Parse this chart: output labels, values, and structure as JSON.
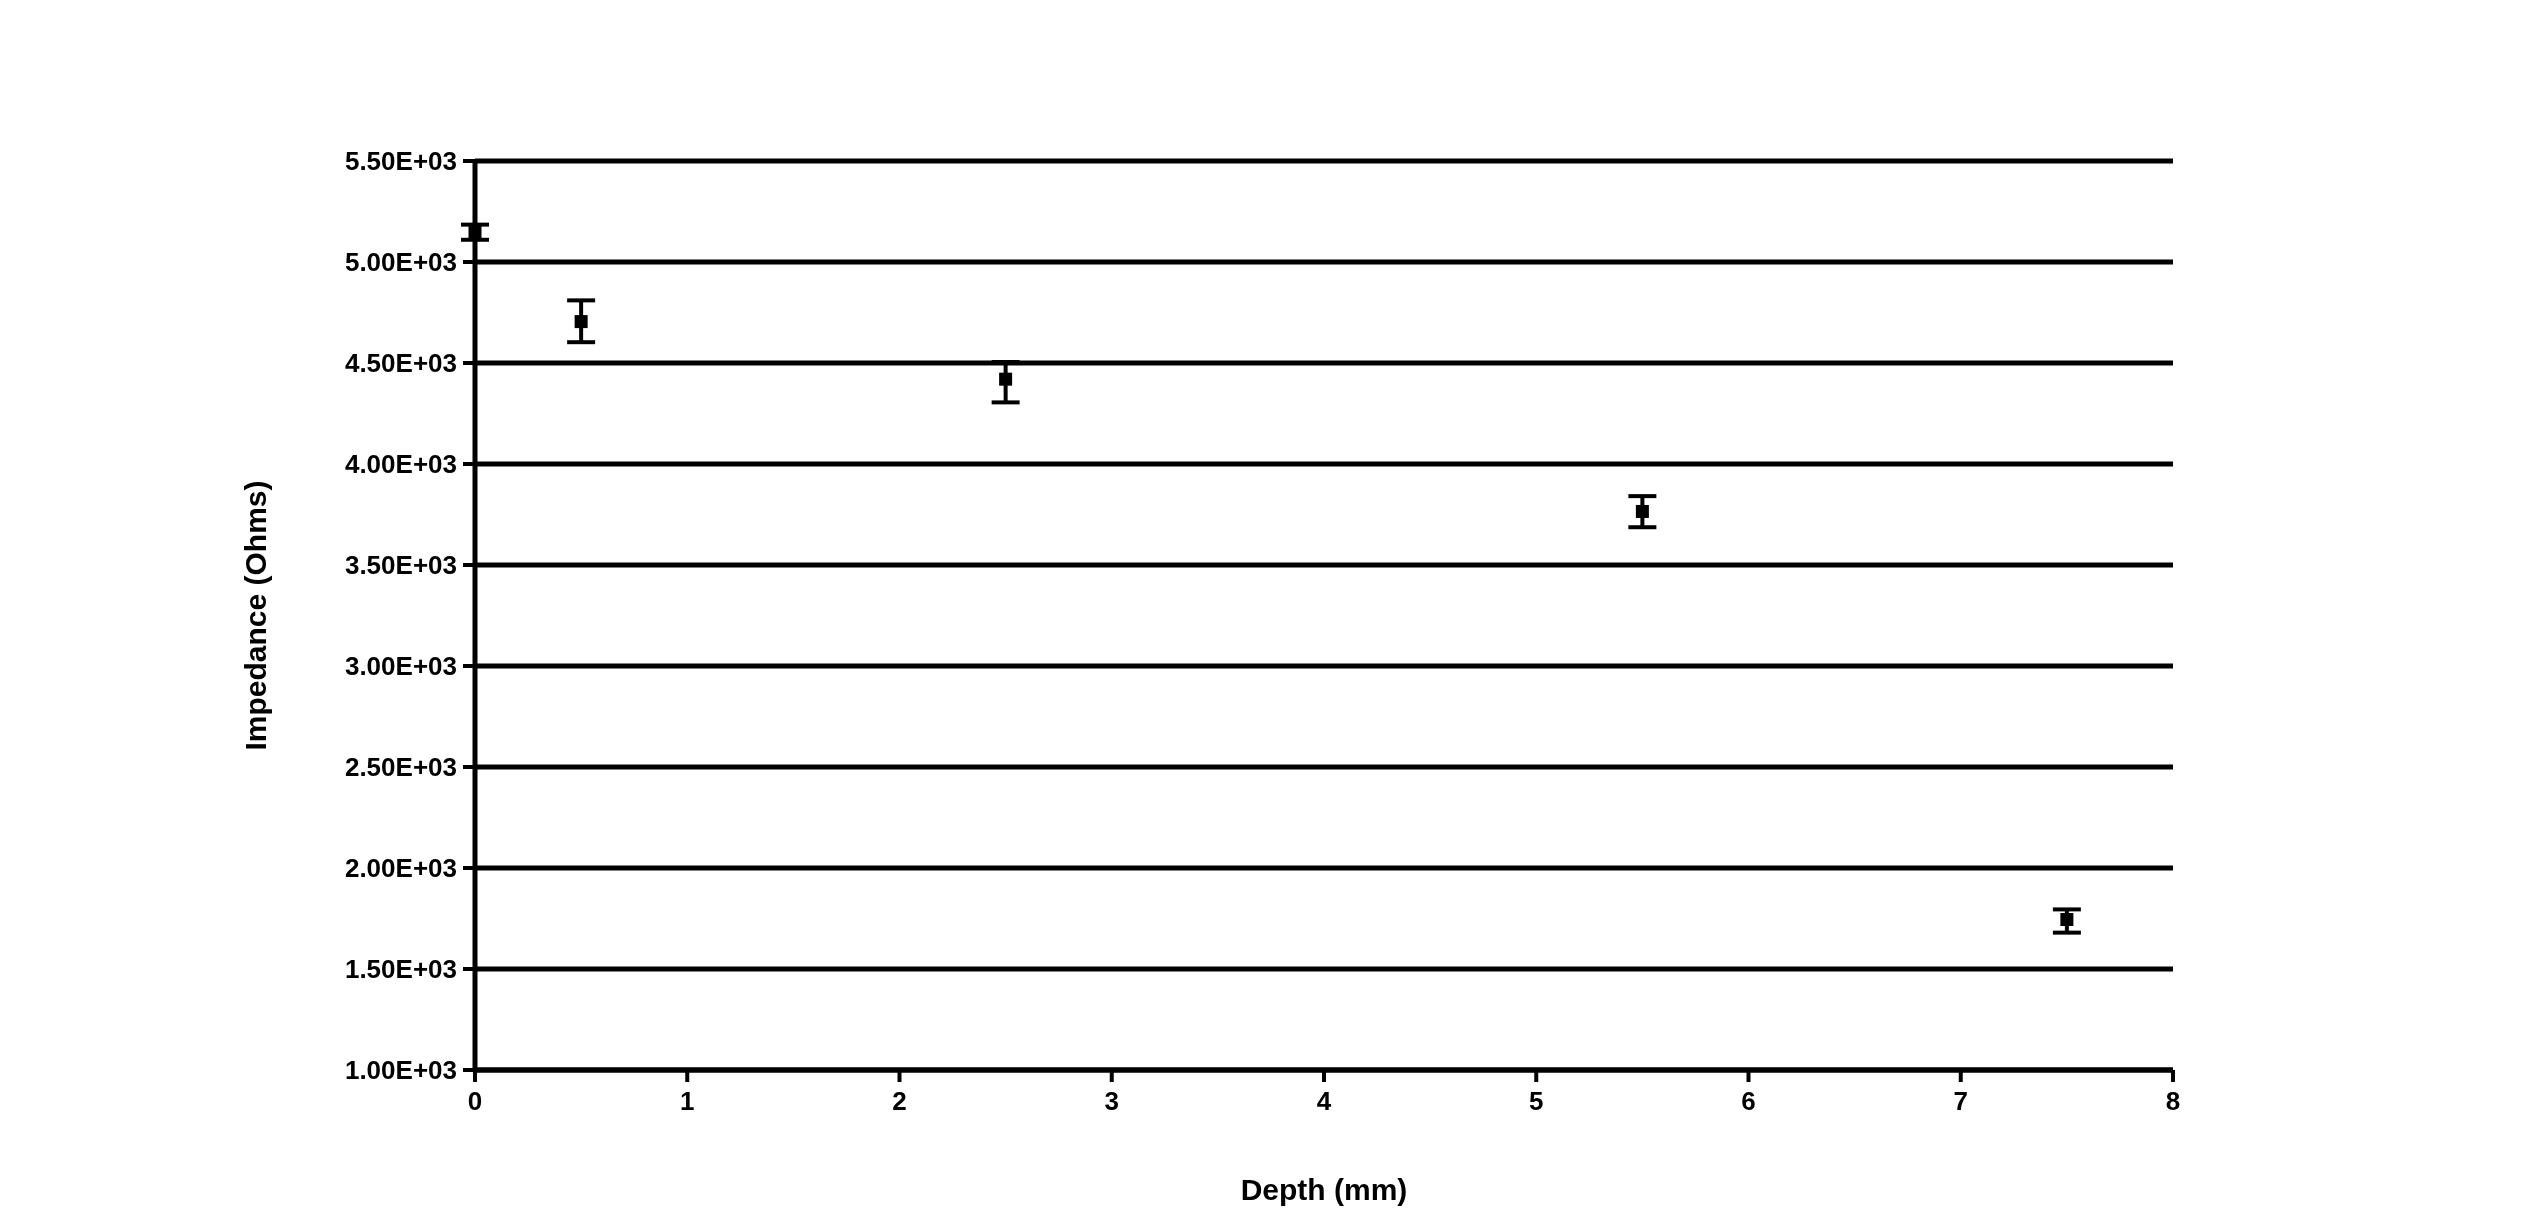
{
  "chart_data": {
    "type": "scatter",
    "xlabel": "Depth (mm)",
    "ylabel": "Impedance (Ohms)",
    "x": [
      0,
      0.5,
      2.5,
      5.5,
      7.5
    ],
    "values": [
      5150,
      4705,
      4420,
      3765,
      1745
    ],
    "errors": [
      [
        5110,
        5185
      ],
      [
        4603,
        4810
      ],
      [
        4305,
        4505
      ],
      [
        3687,
        3841
      ],
      [
        1680,
        1795
      ]
    ],
    "color": "#000000",
    "marker": "square",
    "grid": "y",
    "xlim": [
      0,
      8
    ],
    "xticks": [
      0,
      1,
      2,
      3,
      4,
      5,
      6,
      7,
      8
    ],
    "ylim": [
      1000,
      5500
    ],
    "yticks": [
      {
        "value": 1000,
        "label": "1.00E+03"
      },
      {
        "value": 1500,
        "label": "1.50E+03"
      },
      {
        "value": 2000,
        "label": "2.00E+03"
      },
      {
        "value": 2500,
        "label": "2.50E+03"
      },
      {
        "value": 3000,
        "label": "3.00E+03"
      },
      {
        "value": 3500,
        "label": "3.50E+03"
      },
      {
        "value": 4000,
        "label": "4.00E+03"
      },
      {
        "value": 4500,
        "label": "4.50E+03"
      },
      {
        "value": 5000,
        "label": "5.00E+03"
      },
      {
        "value": 5500,
        "label": "5.50E+03"
      }
    ]
  }
}
